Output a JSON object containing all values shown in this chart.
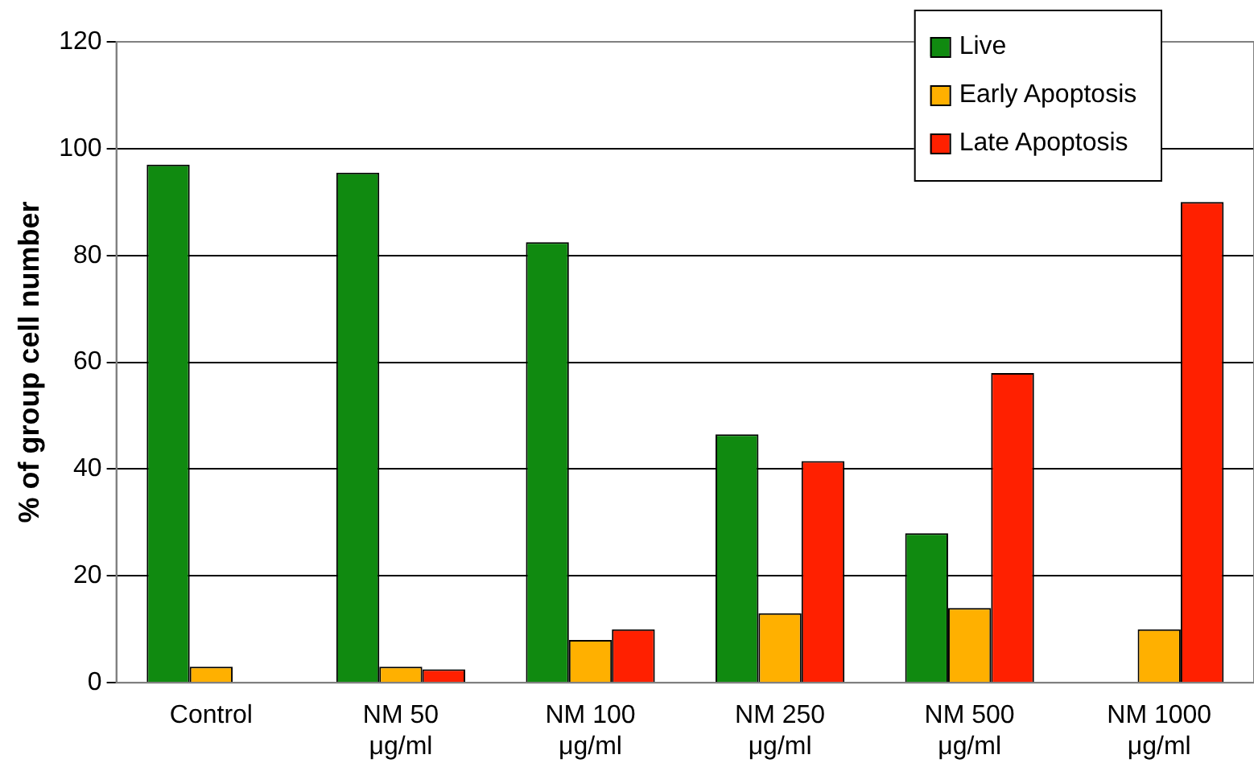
{
  "chart_data": {
    "type": "bar",
    "ylabel": "% of group cell number",
    "categories": [
      "Control",
      "NM 50 μg/ml",
      "NM 100 μg/ml",
      "NM 250 μg/ml",
      "NM 500 μg/ml",
      "NM 1000 μg/ml"
    ],
    "series": [
      {
        "name": "Live",
        "color": "#108a10",
        "values": [
          97,
          95.5,
          82.5,
          46.5,
          28,
          0
        ]
      },
      {
        "name": "Early Apoptosis",
        "color": "#ffb000",
        "values": [
          3,
          3,
          8,
          13,
          14,
          10
        ]
      },
      {
        "name": "Late Apoptosis",
        "color": "#ff2000",
        "values": [
          0,
          2.5,
          10,
          41.5,
          58,
          90
        ]
      }
    ],
    "ylim": [
      0,
      120
    ],
    "yticks": [
      0,
      20,
      40,
      60,
      80,
      100,
      120
    ],
    "grid": "y",
    "legend": "top right"
  }
}
